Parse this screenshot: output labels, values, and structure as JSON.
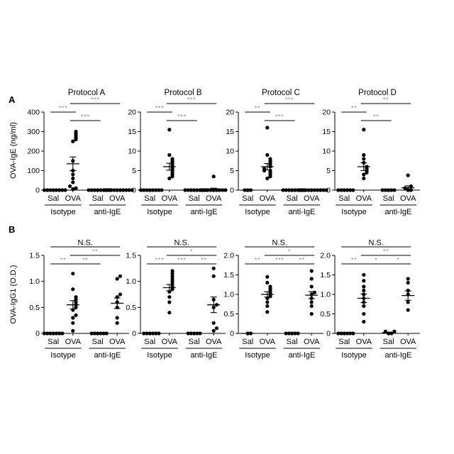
{
  "figure": {
    "rows": [
      {
        "panel_label": "A",
        "ylabel": "OVA-IgE (ng/ml)",
        "charts": [
          {
            "title": "Protocol A",
            "ylim": [
              0,
              400
            ],
            "yticks": [
              0,
              100,
              200,
              300,
              400
            ],
            "sig": [
              {
                "from": 0,
                "to": 1,
                "text": "***",
                "level": 2
              },
              {
                "from": 1,
                "to": 2,
                "text": "***",
                "level": 1
              },
              {
                "from": 1,
                "to": 3,
                "text": "***",
                "level": 3
              }
            ]
          },
          {
            "title": "Protocol B",
            "ylim": [
              0,
              20
            ],
            "yticks": [
              0,
              5,
              10,
              15,
              20
            ],
            "sig": [
              {
                "from": 0,
                "to": 1,
                "text": "***",
                "level": 2
              },
              {
                "from": 1,
                "to": 2,
                "text": "***",
                "level": 1
              },
              {
                "from": 1,
                "to": 3,
                "text": "***",
                "level": 3
              }
            ]
          },
          {
            "title": "Protocol C",
            "ylim": [
              0,
              20
            ],
            "yticks": [
              0,
              5,
              10,
              15,
              20
            ],
            "sig": [
              {
                "from": 0,
                "to": 1,
                "text": "**",
                "level": 2
              },
              {
                "from": 1,
                "to": 2,
                "text": "***",
                "level": 1
              },
              {
                "from": 1,
                "to": 3,
                "text": "***",
                "level": 3
              }
            ]
          },
          {
            "title": "Protocol D",
            "ylim": [
              0,
              20
            ],
            "yticks": [
              0,
              5,
              10,
              15,
              20
            ],
            "sig": [
              {
                "from": 0,
                "to": 1,
                "text": "**",
                "level": 2
              },
              {
                "from": 1,
                "to": 2,
                "text": "**",
                "level": 1
              },
              {
                "from": 1,
                "to": 3,
                "text": "**",
                "level": 3
              }
            ]
          }
        ]
      },
      {
        "panel_label": "B",
        "ylabel": "OVA-IgG1 (O.D.)",
        "charts": [
          {
            "title": "",
            "ylim": [
              0,
              1.5
            ],
            "yticks": [
              0,
              0.5,
              1.0,
              1.5
            ],
            "sig": [
              {
                "from": 0,
                "to": 1,
                "text": "**",
                "level": 1
              },
              {
                "from": 1,
                "to": 2,
                "text": "**",
                "level": 1
              },
              {
                "from": 1,
                "to": 3,
                "text": "**",
                "level": 2
              },
              {
                "from": 0,
                "to": 3,
                "text": "N.S.",
                "level": 3
              }
            ]
          },
          {
            "title": "",
            "ylim": [
              0,
              1.5
            ],
            "yticks": [
              0,
              0.5,
              1.0,
              1.5
            ],
            "sig": [
              {
                "from": 0,
                "to": 1,
                "text": "***",
                "level": 1
              },
              {
                "from": 1,
                "to": 2,
                "text": "***",
                "level": 1
              },
              {
                "from": 2,
                "to": 3,
                "text": "**",
                "level": 1
              },
              {
                "from": 1,
                "to": 3,
                "text": "*",
                "level": 2
              },
              {
                "from": 0,
                "to": 3,
                "text": "N.S.",
                "level": 3
              }
            ]
          },
          {
            "title": "",
            "ylim": [
              0,
              2.0
            ],
            "yticks": [
              0,
              0.5,
              1.0,
              1.5,
              2.0
            ],
            "sig": [
              {
                "from": 0,
                "to": 1,
                "text": "**",
                "level": 1
              },
              {
                "from": 1,
                "to": 2,
                "text": "***",
                "level": 1
              },
              {
                "from": 2,
                "to": 3,
                "text": "**",
                "level": 1
              },
              {
                "from": 1,
                "to": 3,
                "text": "*",
                "level": 2
              },
              {
                "from": 0,
                "to": 3,
                "text": "N.S.",
                "level": 3
              }
            ]
          },
          {
            "title": "",
            "ylim": [
              0,
              2.0
            ],
            "yticks": [
              0,
              0.5,
              1.0,
              1.5,
              2.0
            ],
            "sig": [
              {
                "from": 0,
                "to": 1,
                "text": "**",
                "level": 1
              },
              {
                "from": 1,
                "to": 2,
                "text": "*",
                "level": 1
              },
              {
                "from": 2,
                "to": 3,
                "text": "*",
                "level": 1
              },
              {
                "from": 1,
                "to": 3,
                "text": "**",
                "level": 2
              },
              {
                "from": 0,
                "to": 3,
                "text": "N.S.",
                "level": 3
              }
            ]
          }
        ]
      }
    ],
    "group_labels": [
      "Sal",
      "OVA",
      "Sal",
      "OVA"
    ],
    "treatments": [
      "Isotype",
      "anti-IgE"
    ],
    "colors": {
      "points": "#000000",
      "axes": "#000000",
      "sig_text": "#8c8c8c"
    }
  },
  "chart_data": [
    {
      "type": "scatter",
      "title": "Protocol A",
      "ylabel": "OVA-IgE (ng/ml)",
      "ylim": [
        0,
        400
      ],
      "categories": [
        "Sal",
        "OVA",
        "Sal",
        "OVA"
      ],
      "groups": [
        {
          "name": "Isotype Sal",
          "points": [
            0,
            0,
            0,
            0,
            0,
            0,
            0,
            0
          ],
          "mean": 0,
          "sem": 0
        },
        {
          "name": "Isotype OVA",
          "points": [
            5,
            10,
            20,
            40,
            60,
            80,
            100,
            150,
            250,
            260,
            270,
            280,
            290,
            300
          ],
          "mean": 135,
          "sem": 35
        },
        {
          "name": "anti-IgE Sal",
          "points": [
            0,
            0,
            0,
            0,
            0,
            0,
            0,
            0
          ],
          "mean": 0,
          "sem": 0
        },
        {
          "name": "anti-IgE OVA",
          "points": [
            0,
            0,
            0,
            0,
            0,
            0,
            0,
            0,
            0,
            0
          ],
          "mean": 0,
          "sem": 0
        }
      ]
    },
    {
      "type": "scatter",
      "title": "Protocol B",
      "ylim": [
        0,
        20
      ],
      "categories": [
        "Sal",
        "OVA",
        "Sal",
        "OVA"
      ],
      "groups": [
        {
          "name": "Isotype Sal",
          "points": [
            0,
            0,
            0,
            0,
            0,
            0,
            0,
            0
          ],
          "mean": 0,
          "sem": 0
        },
        {
          "name": "Isotype OVA",
          "points": [
            3,
            3.5,
            4,
            4.5,
            5,
            5.5,
            6,
            6.5,
            7,
            7.5,
            8,
            9,
            15.5
          ],
          "mean": 6.0,
          "sem": 0.9
        },
        {
          "name": "anti-IgE Sal",
          "points": [
            0,
            0,
            0,
            0,
            0,
            0,
            0,
            0
          ],
          "mean": 0,
          "sem": 0
        },
        {
          "name": "anti-IgE OVA",
          "points": [
            0,
            0,
            0,
            0,
            0,
            0,
            0,
            0,
            0,
            3.5
          ],
          "mean": 0.3,
          "sem": 0.2
        }
      ]
    },
    {
      "type": "scatter",
      "title": "Protocol C",
      "ylim": [
        0,
        20
      ],
      "categories": [
        "Sal",
        "OVA",
        "Sal",
        "OVA"
      ],
      "groups": [
        {
          "name": "Isotype Sal",
          "points": [
            0,
            0,
            0
          ],
          "mean": 0,
          "sem": 0
        },
        {
          "name": "Isotype OVA",
          "points": [
            3,
            3.5,
            4,
            4.5,
            5,
            5,
            5.5,
            6,
            6.5,
            7,
            7.5,
            8,
            9,
            16
          ],
          "mean": 6.0,
          "sem": 0.8
        },
        {
          "name": "anti-IgE Sal",
          "points": [
            0,
            0,
            0,
            0,
            0,
            0,
            0,
            0
          ],
          "mean": 0,
          "sem": 0
        },
        {
          "name": "anti-IgE OVA",
          "points": [
            0,
            0,
            0,
            0,
            0,
            0,
            0,
            0,
            0,
            0
          ],
          "mean": 0,
          "sem": 0
        }
      ]
    },
    {
      "type": "scatter",
      "title": "Protocol D",
      "ylim": [
        0,
        20
      ],
      "categories": [
        "Sal",
        "OVA",
        "Sal",
        "OVA"
      ],
      "groups": [
        {
          "name": "Isotype Sal",
          "points": [
            0,
            0,
            0,
            0,
            0,
            0
          ],
          "mean": 0,
          "sem": 0
        },
        {
          "name": "Isotype OVA",
          "points": [
            3,
            4,
            4.5,
            5,
            5.5,
            6,
            7,
            8,
            9,
            15.5
          ],
          "mean": 6.0,
          "sem": 1.0
        },
        {
          "name": "anti-IgE Sal",
          "points": [
            0,
            0,
            0,
            0,
            0
          ],
          "mean": 0,
          "sem": 0
        },
        {
          "name": "anti-IgE OVA",
          "points": [
            0,
            0,
            0.5,
            1,
            3.8
          ],
          "mean": 0.6,
          "sem": 0.5
        }
      ]
    },
    {
      "type": "scatter",
      "ylabel": "OVA-IgG1 (O.D.)",
      "ylim": [
        0,
        1.5
      ],
      "categories": [
        "Sal",
        "OVA",
        "Sal",
        "OVA"
      ],
      "groups": [
        {
          "name": "Isotype Sal",
          "points": [
            0,
            0,
            0,
            0,
            0,
            0,
            0
          ],
          "mean": 0,
          "sem": 0
        },
        {
          "name": "Isotype OVA",
          "points": [
            0.05,
            0.2,
            0.3,
            0.35,
            0.45,
            0.5,
            0.55,
            0.6,
            0.65,
            0.7,
            0.85,
            1.15
          ],
          "mean": 0.55,
          "sem": 0.08
        },
        {
          "name": "anti-IgE Sal",
          "points": [
            0,
            0,
            0,
            0,
            0,
            0
          ],
          "mean": 0,
          "sem": 0
        },
        {
          "name": "anti-IgE OVA",
          "points": [
            0.2,
            0.3,
            0.5,
            0.6,
            0.7,
            0.75,
            1.05,
            1.1
          ],
          "mean": 0.58,
          "sem": 0.1
        }
      ]
    },
    {
      "type": "scatter",
      "ylim": [
        0,
        1.5
      ],
      "categories": [
        "Sal",
        "OVA",
        "Sal",
        "OVA"
      ],
      "groups": [
        {
          "name": "Isotype Sal",
          "points": [
            0,
            0,
            0,
            0,
            0,
            0
          ],
          "mean": 0,
          "sem": 0
        },
        {
          "name": "Isotype OVA",
          "points": [
            0.4,
            0.6,
            0.7,
            0.8,
            0.85,
            0.9,
            0.95,
            1.0,
            1.05,
            1.1,
            1.15,
            1.2
          ],
          "mean": 0.88,
          "sem": 0.06
        },
        {
          "name": "anti-IgE Sal",
          "points": [
            0,
            0,
            0,
            0,
            0
          ],
          "mean": 0,
          "sem": 0
        },
        {
          "name": "anti-IgE OVA",
          "points": [
            0.05,
            0.1,
            0.2,
            0.5,
            0.55,
            0.65,
            1.1,
            1.25
          ],
          "mean": 0.55,
          "sem": 0.15
        }
      ]
    },
    {
      "type": "scatter",
      "ylim": [
        0,
        2.0
      ],
      "categories": [
        "Sal",
        "OVA",
        "Sal",
        "OVA"
      ],
      "groups": [
        {
          "name": "Isotype Sal",
          "points": [
            0,
            0
          ],
          "mean": 0,
          "sem": 0
        },
        {
          "name": "Isotype OVA",
          "points": [
            0.55,
            0.7,
            0.8,
            0.9,
            0.95,
            1.0,
            1.05,
            1.1,
            1.15,
            1.2,
            1.3,
            1.45
          ],
          "mean": 1.0,
          "sem": 0.07
        },
        {
          "name": "anti-IgE Sal",
          "points": [
            0,
            0,
            0,
            0,
            0
          ],
          "mean": 0,
          "sem": 0
        },
        {
          "name": "anti-IgE OVA",
          "points": [
            0.5,
            0.7,
            0.8,
            0.9,
            1.0,
            1.05,
            1.2,
            1.4,
            1.6
          ],
          "mean": 0.98,
          "sem": 0.09
        }
      ]
    },
    {
      "type": "scatter",
      "ylim": [
        0,
        2.0
      ],
      "categories": [
        "Sal",
        "OVA",
        "Sal",
        "OVA"
      ],
      "groups": [
        {
          "name": "Isotype Sal",
          "points": [
            0,
            0,
            0,
            0,
            0,
            0
          ],
          "mean": 0,
          "sem": 0
        },
        {
          "name": "Isotype OVA",
          "points": [
            0.3,
            0.5,
            0.7,
            0.8,
            0.9,
            1.0,
            1.1,
            1.2,
            1.35,
            1.5
          ],
          "mean": 0.9,
          "sem": 0.11
        },
        {
          "name": "anti-IgE Sal",
          "points": [
            0,
            0,
            0.05,
            0.05
          ],
          "mean": 0.02,
          "sem": 0.01
        },
        {
          "name": "anti-IgE OVA",
          "points": [
            0.6,
            0.8,
            1.0,
            1.1,
            1.3,
            1.4
          ],
          "mean": 0.97,
          "sem": 0.12
        }
      ]
    }
  ]
}
